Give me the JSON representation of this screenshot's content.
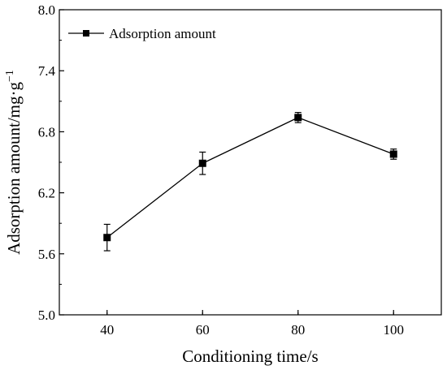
{
  "chart_data": {
    "type": "line",
    "title": "",
    "xlabel": "Conditioning time/s",
    "ylabel": "Adsorption amount/mg·g",
    "ylabel_superscript": "−1",
    "x": [
      40,
      60,
      80,
      100
    ],
    "xlim": [
      30,
      110
    ],
    "ylim": [
      5.0,
      8.0
    ],
    "x_ticks": [
      "40",
      "60",
      "80",
      "100"
    ],
    "y_ticks": [
      "5.0",
      "5.6",
      "6.2",
      "6.8",
      "7.4",
      "8.0"
    ],
    "series": [
      {
        "name": "Adsorption amount",
        "values": [
          5.76,
          6.49,
          6.94,
          6.58
        ],
        "errors": [
          0.13,
          0.11,
          0.05,
          0.05
        ],
        "color": "#000000",
        "marker": "square"
      }
    ],
    "grid": false,
    "legend_position": "top-left"
  }
}
